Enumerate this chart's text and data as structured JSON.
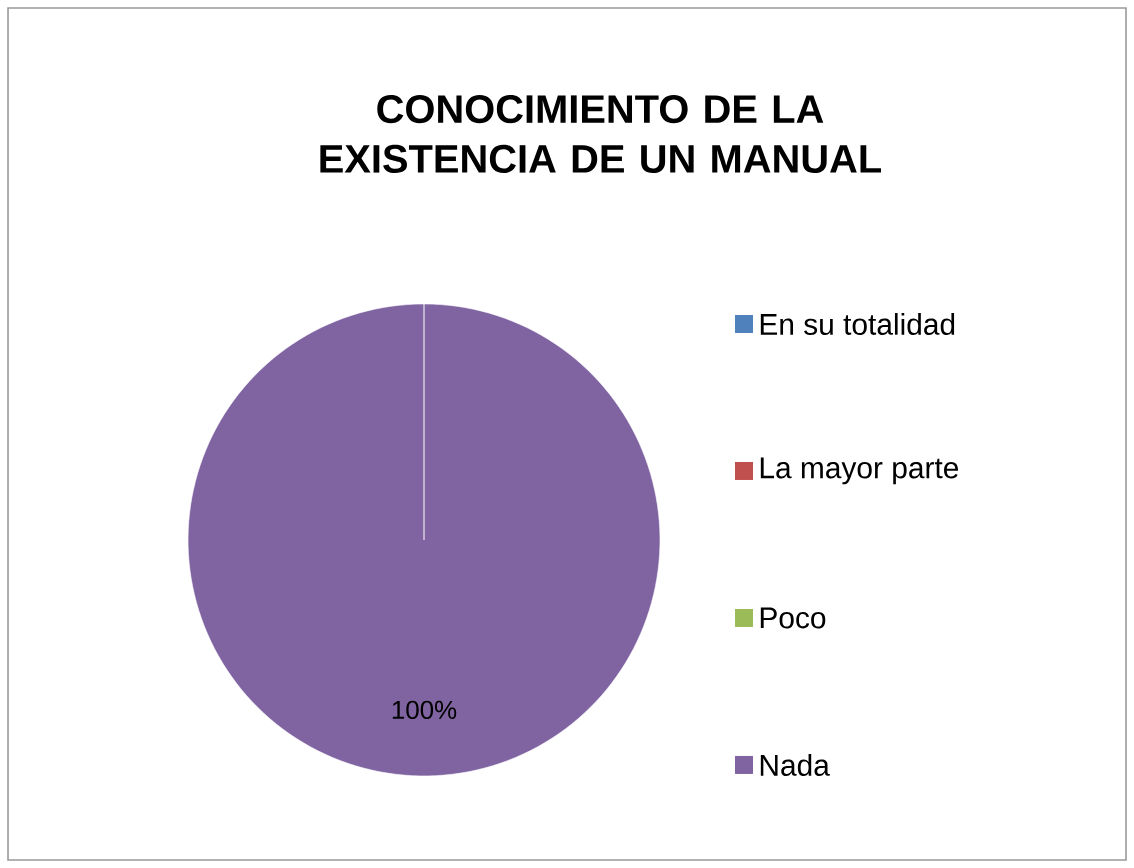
{
  "chart_data": {
    "type": "pie",
    "title": "CONOCIMIENTO DE LA EXISTENCIA DE UN MANUAL",
    "categories": [
      "En su totalidad",
      "La mayor parte",
      "Poco",
      "Nada"
    ],
    "values": [
      0,
      0,
      0,
      100
    ],
    "colors": [
      "#4f81bd",
      "#c0504d",
      "#9bbb59",
      "#8064a2"
    ],
    "value_labels": [
      null,
      null,
      null,
      "100%"
    ],
    "legend": "right"
  }
}
